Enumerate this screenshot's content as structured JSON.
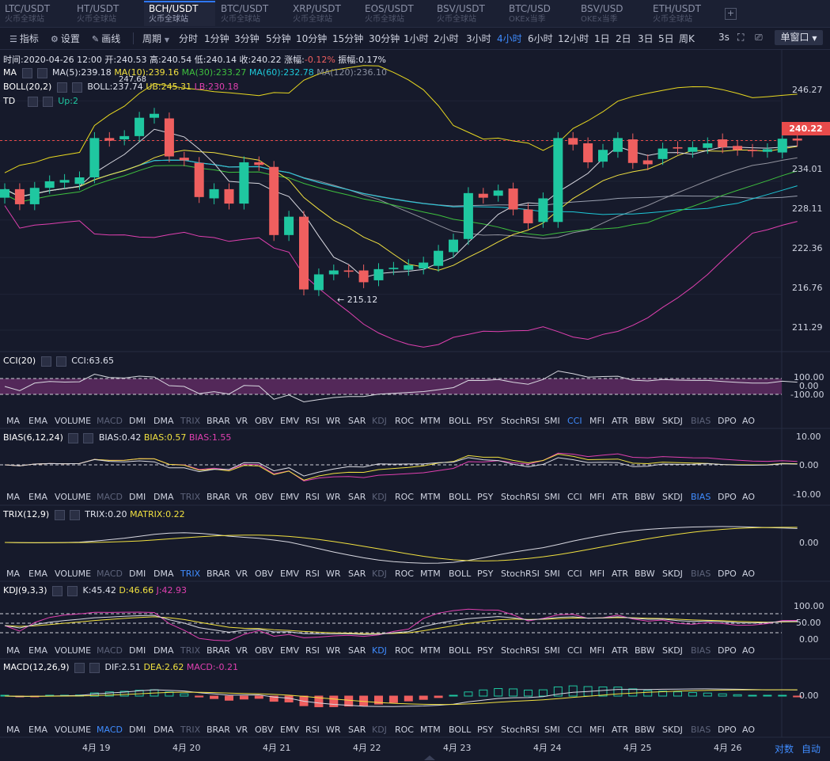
{
  "tabs": [
    {
      "pair": "LTC/USDT",
      "exchange": "火币全球站"
    },
    {
      "pair": "HT/USDT",
      "exchange": "火币全球站"
    },
    {
      "pair": "BCH/USDT",
      "exchange": "火币全球站"
    },
    {
      "pair": "BTC/USDT",
      "exchange": "火币全球站"
    },
    {
      "pair": "XRP/USDT",
      "exchange": "火币全球站"
    },
    {
      "pair": "EOS/USDT",
      "exchange": "火币全球站"
    },
    {
      "pair": "BSV/USDT",
      "exchange": "火币全球站"
    },
    {
      "pair": "BTC/USD",
      "exchange": "OKEx当季"
    },
    {
      "pair": "BSV/USD",
      "exchange": "OKEx当季"
    },
    {
      "pair": "ETH/USDT",
      "exchange": "火币全球站"
    }
  ],
  "tab_add": "+",
  "toolbar": {
    "indicator": "指标",
    "settings": "设置",
    "draw": "画线",
    "period": "周期",
    "periods": [
      "分时",
      "1分钟",
      "3分钟",
      "5分钟",
      "10分钟",
      "15分钟",
      "30分钟",
      "1小时",
      "2小时",
      "3小时",
      "4小时",
      "6小时",
      "12小时",
      "1日",
      "2日",
      "3日",
      "5日",
      "周K"
    ],
    "selected_period": "4小时",
    "refresh": "3s",
    "window_mode": "单窗口"
  },
  "info": {
    "time": "时间:2020-04-26 12:00",
    "open": "开:240.53",
    "high": "高:240.54",
    "low": "低:240.14",
    "close": "收:240.22",
    "change_label": "涨幅:",
    "change": "-0.12%",
    "amplitude": "振幅:0.17%"
  },
  "ma": {
    "name": "MA",
    "ma5": "MA(5):239.18",
    "ma10": "MA(10):239.16",
    "ma30": "MA(30):233.27",
    "ma60": "MA(60):232.78",
    "ma120": "MA(120):236.10"
  },
  "boll": {
    "name": "BOLL(20,2)",
    "boll": "BOLL:237.74",
    "ub": "UB:245.31",
    "lb": "LB:230.18"
  },
  "td": {
    "name": "TD",
    "up": "Up:2"
  },
  "price_axis": [
    "246.27",
    "240.22",
    "234.01",
    "228.11",
    "222.36",
    "216.76",
    "211.29"
  ],
  "annotations": {
    "high": "247.68",
    "low": "← 215.12"
  },
  "cci": {
    "name": "CCI(20)",
    "value": "CCI:63.65",
    "axis": [
      "100.00",
      "0.00",
      "-100.00"
    ]
  },
  "bias": {
    "name": "BIAS(6,12,24)",
    "b1": "BIAS:0.42",
    "b2": "BIAS:0.57",
    "b3": "BIAS:1.55",
    "axis": [
      "10.00",
      "0.00",
      "-10.00"
    ]
  },
  "trix": {
    "name": "TRIX(12,9)",
    "trix": "TRIX:0.20",
    "matrix": "MATRIX:0.22",
    "axis": [
      "0.00"
    ]
  },
  "kdj": {
    "name": "KDJ(9,3,3)",
    "k": "K:45.42",
    "d": "D:46.66",
    "j": "J:42.93",
    "axis": [
      "100.00",
      "50.00",
      "0.00"
    ]
  },
  "macd": {
    "name": "MACD(12,26,9)",
    "dif": "DIF:2.51",
    "dea": "DEA:2.62",
    "macd": "MACD:-0.21",
    "axis": [
      "0.00"
    ]
  },
  "indicator_list": [
    "MA",
    "EMA",
    "VOLUME",
    "MACD",
    "DMI",
    "DMA",
    "TRIX",
    "BRAR",
    "VR",
    "OBV",
    "EMV",
    "RSI",
    "WR",
    "SAR",
    "KDJ",
    "ROC",
    "MTM",
    "BOLL",
    "PSY",
    "StochRSI",
    "SMI",
    "CCI",
    "MFI",
    "ATR",
    "BBW",
    "SKDJ",
    "BIAS",
    "DPO",
    "AO"
  ],
  "dates": [
    "4月 19",
    "4月 20",
    "4月 21",
    "4月 22",
    "4月 23",
    "4月 24",
    "4月 25",
    "4月 26"
  ],
  "bottom": {
    "contrast": "对数",
    "auto": "自动"
  },
  "colors": {
    "up": "#1fc7a0",
    "down": "#ef5f5f",
    "accent": "#3f8cff",
    "ma5": "#d8d8e0",
    "ma10": "#f0e040",
    "ma30": "#3ec03e",
    "ma60": "#1ec8d8",
    "ma120": "#9aa0b0",
    "boll": "#c8c8d0",
    "ub": "#e8d820",
    "lb": "#e040b0"
  },
  "chart_data": {
    "type": "candlestick",
    "title": "BCH/USDT 4小时",
    "candles": [
      {
        "o": 231.5,
        "c": 232.8
      },
      {
        "o": 232.8,
        "c": 230.5
      },
      {
        "o": 230.5,
        "c": 233.0
      },
      {
        "o": 233.0,
        "c": 234.0
      },
      {
        "o": 233.8,
        "c": 234.2
      },
      {
        "o": 233.6,
        "c": 234.6
      },
      {
        "o": 234.6,
        "c": 240.6
      },
      {
        "o": 240.6,
        "c": 240.2
      },
      {
        "o": 240.4,
        "c": 240.9
      },
      {
        "o": 240.9,
        "c": 243.7
      },
      {
        "o": 243.7,
        "c": 244.3
      },
      {
        "o": 243.6,
        "c": 237.8
      },
      {
        "o": 237.6,
        "c": 237.2
      },
      {
        "o": 236.8,
        "c": 231.6
      },
      {
        "o": 231.4,
        "c": 232.8
      },
      {
        "o": 232.8,
        "c": 230.6
      },
      {
        "o": 230.6,
        "c": 236.9
      },
      {
        "o": 236.9,
        "c": 236.5
      },
      {
        "o": 236.2,
        "c": 225.8
      },
      {
        "o": 225.8,
        "c": 228.6
      },
      {
        "o": 228.6,
        "c": 217.5
      },
      {
        "o": 217.4,
        "c": 219.8
      },
      {
        "o": 219.8,
        "c": 220.4
      },
      {
        "o": 220.4,
        "c": 220.2
      },
      {
        "o": 220.4,
        "c": 218.6
      },
      {
        "o": 218.9,
        "c": 220.6
      },
      {
        "o": 220.6,
        "c": 220.8
      },
      {
        "o": 220.5,
        "c": 221.2
      },
      {
        "o": 220.7,
        "c": 221.6
      },
      {
        "o": 221.1,
        "c": 223.4
      },
      {
        "o": 223.2,
        "c": 225.1
      },
      {
        "o": 225.2,
        "c": 232.2
      },
      {
        "o": 232.1,
        "c": 231.5
      },
      {
        "o": 231.8,
        "c": 232.6
      },
      {
        "o": 232.9,
        "c": 229.7
      },
      {
        "o": 229.7,
        "c": 227.6
      },
      {
        "o": 227.8,
        "c": 231.4
      },
      {
        "o": 227.8,
        "c": 240.6
      },
      {
        "o": 240.6,
        "c": 239.6
      },
      {
        "o": 239.8,
        "c": 236.9
      },
      {
        "o": 237.0,
        "c": 238.8
      },
      {
        "o": 238.5,
        "c": 240.6
      },
      {
        "o": 240.4,
        "c": 236.8
      },
      {
        "o": 237.2,
        "c": 236.6
      },
      {
        "o": 237.4,
        "c": 239.0
      },
      {
        "o": 239.2,
        "c": 239.0
      },
      {
        "o": 238.5,
        "c": 239.2
      },
      {
        "o": 239.1,
        "c": 239.8
      },
      {
        "o": 240.4,
        "c": 239.2
      },
      {
        "o": 239.4,
        "c": 238.8
      },
      {
        "o": 238.8,
        "c": 238.6
      },
      {
        "o": 238.5,
        "c": 238.9
      },
      {
        "o": 238.4,
        "c": 240.5
      },
      {
        "o": 240.53,
        "c": 240.22
      }
    ],
    "y_range": [
      208.5,
      252.0
    ],
    "x_labels": [
      "4月 19",
      "4月 20",
      "4月 21",
      "4月 22",
      "4月 23",
      "4月 24",
      "4月 25",
      "4月 26"
    ],
    "last_price": 240.22
  }
}
